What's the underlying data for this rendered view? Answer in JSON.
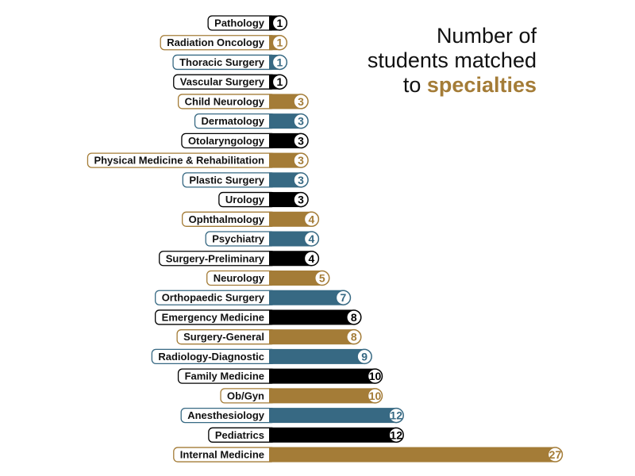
{
  "title": {
    "line1": "Number of",
    "line2": "students matched",
    "line3_prefix": "to",
    "line3_accent": "specialties"
  },
  "colors": {
    "gold": "#a47c37",
    "blue": "#376983",
    "black": "#000000"
  },
  "chart_data": {
    "type": "bar",
    "orientation": "horizontal",
    "title": "Number of students matched to specialties",
    "xlabel": "",
    "ylabel": "",
    "xlim": [
      0,
      27
    ],
    "grid": false,
    "legend": "none",
    "categories": [
      "Pathology",
      "Radiation Oncology",
      "Thoracic Surgery",
      "Vascular Surgery",
      "Child Neurology",
      "Dermatology",
      "Otolaryngology",
      "Physical Medicine & Rehabilitation",
      "Plastic Surgery",
      "Urology",
      "Ophthalmology",
      "Psychiatry",
      "Surgery-Preliminary",
      "Neurology",
      "Orthopaedic Surgery",
      "Emergency Medicine",
      "Surgery-General",
      "Radiology-Diagnostic",
      "Family Medicine",
      "Ob/Gyn",
      "Anesthesiology",
      "Pediatrics",
      "Internal Medicine"
    ],
    "values": [
      1,
      1,
      1,
      1,
      3,
      3,
      3,
      3,
      3,
      3,
      4,
      4,
      4,
      5,
      7,
      8,
      8,
      9,
      10,
      10,
      12,
      12,
      27
    ],
    "bar_colors": [
      "black",
      "gold",
      "blue",
      "black",
      "gold",
      "blue",
      "black",
      "gold",
      "blue",
      "black",
      "gold",
      "blue",
      "black",
      "gold",
      "blue",
      "black",
      "gold",
      "blue",
      "black",
      "gold",
      "blue",
      "black",
      "gold"
    ]
  }
}
